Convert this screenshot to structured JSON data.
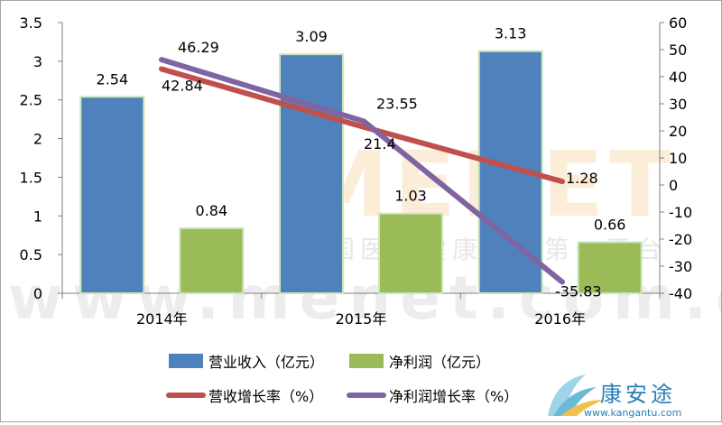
{
  "chart_data": {
    "type": "bar",
    "categories": [
      "2014年",
      "2015年",
      "2016年"
    ],
    "series": [
      {
        "name": "营业收入（亿元）",
        "kind": "bar",
        "axis": "left",
        "color": "#4f81bd",
        "values": [
          2.54,
          3.09,
          3.13
        ]
      },
      {
        "name": "净利润（亿元）",
        "kind": "bar",
        "axis": "left",
        "color": "#9bbb59",
        "values": [
          0.84,
          1.03,
          0.66
        ]
      },
      {
        "name": "营收增长率（%）",
        "kind": "line",
        "axis": "right",
        "color": "#c0504d",
        "values": [
          42.84,
          21.4,
          1.28
        ]
      },
      {
        "name": "净利润增长率（%）",
        "kind": "line",
        "axis": "right",
        "color": "#8064a2",
        "values": [
          46.29,
          23.55,
          -35.83
        ]
      }
    ],
    "ylim_left": [
      0,
      3.5
    ],
    "yticks_left": [
      "0",
      "0.5",
      "1",
      "1.5",
      "2",
      "2.5",
      "3",
      "3.5"
    ],
    "ylim_right": [
      -40,
      60
    ],
    "yticks_right": [
      "-40",
      "-30",
      "-20",
      "-10",
      "0",
      "10",
      "20",
      "30",
      "40",
      "50",
      "60"
    ],
    "grid": false,
    "legend_position": "bottom"
  },
  "watermark": {
    "logo": "MENET",
    "tagline": "中国医药健康信息第一平台",
    "url": "www.menet.com.cn"
  },
  "brand": {
    "name": "康安途",
    "url": "www.kangantu.com"
  }
}
